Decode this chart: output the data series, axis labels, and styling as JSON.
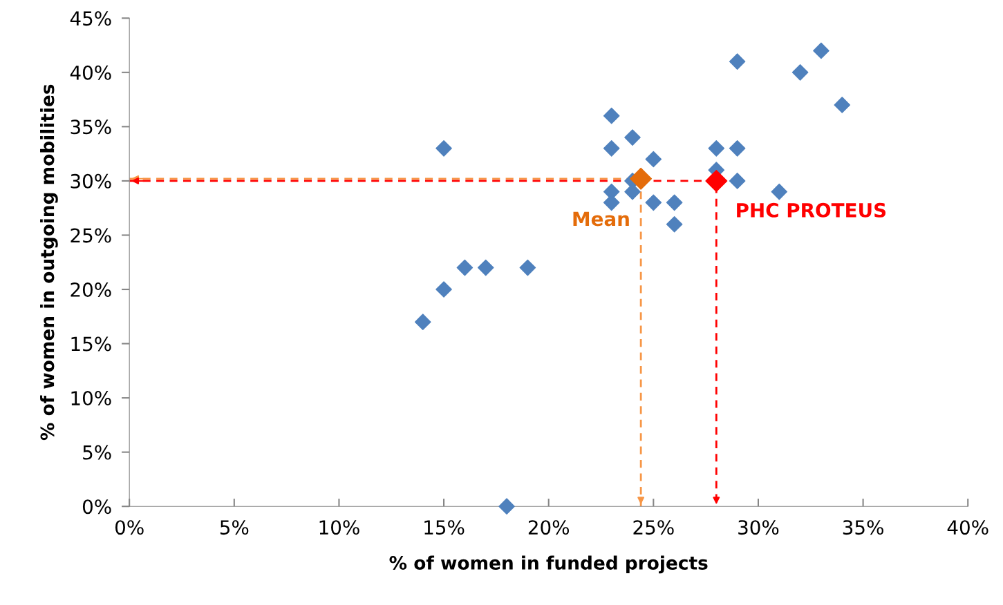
{
  "chart_data": {
    "type": "scatter",
    "xlabel": "% of women in funded projects",
    "ylabel": "% of women in outgoing mobilities",
    "xlim": [
      0,
      40
    ],
    "ylim": [
      0,
      45
    ],
    "xticks": [
      {
        "value": 0,
        "label": "0%"
      },
      {
        "value": 5,
        "label": "5%"
      },
      {
        "value": 10,
        "label": "10%"
      },
      {
        "value": 15,
        "label": "15%"
      },
      {
        "value": 20,
        "label": "20%"
      },
      {
        "value": 25,
        "label": "25%"
      },
      {
        "value": 30,
        "label": "30%"
      },
      {
        "value": 35,
        "label": "35%"
      },
      {
        "value": 40,
        "label": "40%"
      }
    ],
    "yticks": [
      {
        "value": 0,
        "label": "0%"
      },
      {
        "value": 5,
        "label": "5%"
      },
      {
        "value": 10,
        "label": "10%"
      },
      {
        "value": 15,
        "label": "15%"
      },
      {
        "value": 20,
        "label": "20%"
      },
      {
        "value": 25,
        "label": "25%"
      },
      {
        "value": 30,
        "label": "30%"
      },
      {
        "value": 35,
        "label": "35%"
      },
      {
        "value": 40,
        "label": "40%"
      },
      {
        "value": 45,
        "label": "45%"
      }
    ],
    "grid": false,
    "legend": false,
    "marker": "diamond",
    "series": [
      {
        "type": "line",
        "color": "#f79646",
        "line_style": "dashed",
        "marker": "none",
        "x": [
          0,
          24.4,
          24.4
        ],
        "values": [
          30.2,
          30.2,
          0
        ]
      },
      {
        "type": "line",
        "color": "#ff0000",
        "line_style": "dashed",
        "marker": "none",
        "x": [
          0,
          28,
          28
        ],
        "values": [
          30,
          30,
          0
        ]
      },
      {
        "color": "#4f81bd",
        "x": [
          14,
          15,
          15,
          16,
          17,
          19,
          18,
          23,
          23,
          23,
          23,
          24,
          24,
          24,
          25,
          25,
          26,
          26,
          28,
          28,
          29,
          29,
          29,
          31,
          32,
          33,
          34
        ],
        "values": [
          17,
          20,
          33,
          22,
          22,
          22,
          0,
          36,
          33,
          29,
          28,
          34,
          30,
          29,
          32,
          28,
          28,
          26,
          33,
          31,
          41,
          33,
          30,
          29,
          40,
          42,
          37
        ]
      },
      {
        "name": "Mean",
        "color": "#e46c0a",
        "x": [
          24.4
        ],
        "values": [
          30.2
        ]
      },
      {
        "name": "PHC PROTEUS",
        "color": "#ff0000",
        "x": [
          28
        ],
        "values": [
          30
        ]
      }
    ]
  }
}
